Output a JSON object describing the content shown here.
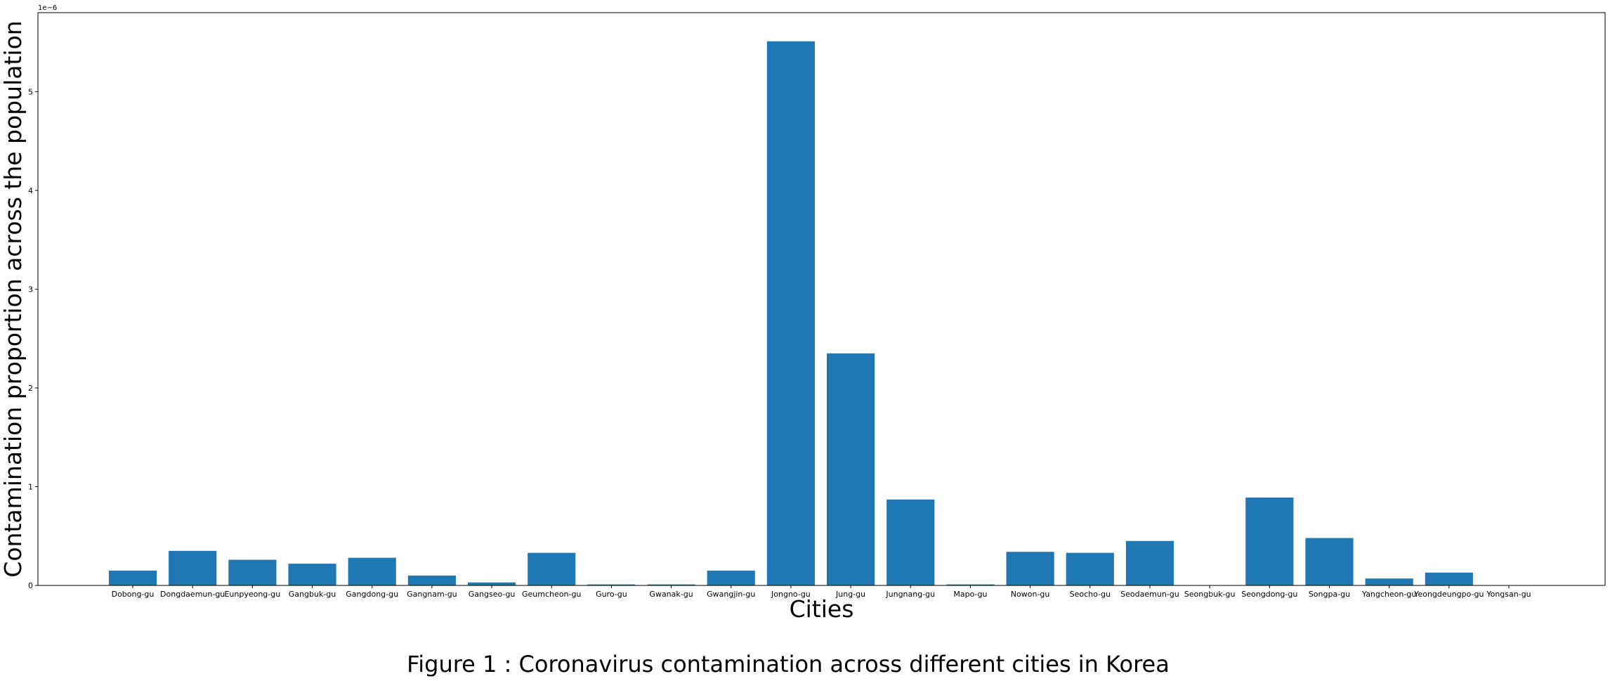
{
  "chart_data": {
    "type": "bar",
    "title": "",
    "xlabel": "Cities",
    "ylabel": "Contamination proportion across the population",
    "y_offset_text": "1e−6",
    "ylim": [
      0,
      5.8
    ],
    "y_scale_factor": "1e-6",
    "yticks": [
      "0",
      "1",
      "2",
      "3",
      "4",
      "5"
    ],
    "categories": [
      "Dobong-gu",
      "Dongdaemun-gu",
      "Eunpyeong-gu",
      "Gangbuk-gu",
      "Gangdong-gu",
      "Gangnam-gu",
      "Gangseo-gu",
      "Geumcheon-gu",
      "Guro-gu",
      "Gwanak-gu",
      "Gwangjin-gu",
      "Jongno-gu",
      "Jung-gu",
      "Jungnang-gu",
      "Mapo-gu",
      "Nowon-gu",
      "Seocho-gu",
      "Seodaemun-gu",
      "Seongbuk-gu",
      "Seongdong-gu",
      "Songpa-gu",
      "Yangcheon-gu",
      "Yeongdeungpo-gu",
      "Yongsan-gu"
    ],
    "values": [
      0.15,
      0.35,
      0.26,
      0.22,
      0.28,
      0.1,
      0.03,
      0.33,
      0.01,
      0.01,
      0.15,
      5.51,
      2.35,
      0.87,
      0.01,
      0.34,
      0.33,
      0.45,
      0.0,
      0.89,
      0.48,
      0.07,
      0.13,
      0.0
    ],
    "bar_color": "#1f77b4",
    "grid": false,
    "legend": "none"
  },
  "caption": "Figure 1 : Coronavirus contamination across different cities in Korea"
}
